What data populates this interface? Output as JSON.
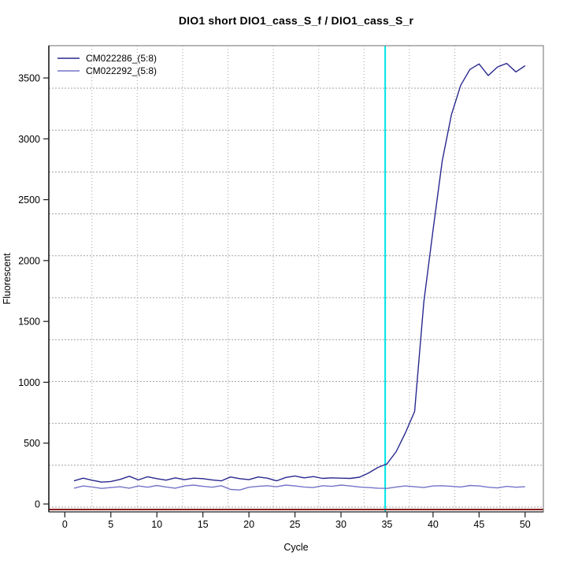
{
  "page": {
    "background": "#ffffff"
  },
  "chart_data": {
    "type": "line",
    "title": "DIO1 short DIO1_cass_S_f / DIO1_cass_S_r",
    "xlabel": "Cycle",
    "ylabel": "Fluorescent",
    "x_ticks": [
      0,
      5,
      10,
      15,
      20,
      25,
      30,
      35,
      40,
      45,
      50
    ],
    "y_ticks": [
      0,
      500,
      1000,
      1500,
      2000,
      2500,
      3000,
      3500
    ],
    "xlim": [
      -1.7,
      52.0
    ],
    "ylim": [
      -65,
      3765
    ],
    "grid": true,
    "legend_position": "top-left",
    "threshold_vline": {
      "x": 34.8,
      "color": "#00e6e6"
    },
    "baseline_hline": {
      "y": -45,
      "color": "#8b1f1f"
    },
    "series": [
      {
        "name": "CM022286_(5:8)",
        "color": "#28288f",
        "x": [
          1,
          2,
          3,
          4,
          5,
          6,
          7,
          8,
          9,
          10,
          11,
          12,
          13,
          14,
          15,
          16,
          17,
          18,
          19,
          20,
          21,
          22,
          23,
          24,
          25,
          26,
          27,
          28,
          29,
          30,
          31,
          32,
          33,
          34,
          35,
          36,
          37,
          38,
          39,
          40,
          41,
          42,
          43,
          44,
          45,
          46,
          47,
          48,
          49,
          50
        ],
        "values": [
          190,
          212,
          195,
          180,
          185,
          202,
          228,
          198,
          224,
          208,
          196,
          215,
          200,
          212,
          208,
          198,
          190,
          222,
          208,
          200,
          222,
          212,
          190,
          218,
          230,
          215,
          225,
          210,
          215,
          212,
          210,
          220,
          255,
          300,
          330,
          430,
          585,
          760,
          1660,
          2250,
          2820,
          3200,
          3440,
          3570,
          3615,
          3520,
          3590,
          3620,
          3550,
          3600
        ]
      },
      {
        "name": "CM022292_(5:8)",
        "color": "#7474c9",
        "x": [
          1,
          2,
          3,
          4,
          5,
          6,
          7,
          8,
          9,
          10,
          11,
          12,
          13,
          14,
          15,
          16,
          17,
          18,
          19,
          20,
          21,
          22,
          23,
          24,
          25,
          26,
          27,
          28,
          29,
          30,
          31,
          32,
          33,
          34,
          35,
          36,
          37,
          38,
          39,
          40,
          41,
          42,
          43,
          44,
          45,
          46,
          47,
          48,
          49,
          50
        ],
        "values": [
          130,
          148,
          140,
          128,
          135,
          142,
          130,
          148,
          138,
          152,
          140,
          130,
          148,
          155,
          145,
          138,
          150,
          120,
          115,
          138,
          145,
          150,
          142,
          155,
          148,
          140,
          135,
          150,
          145,
          155,
          148,
          140,
          135,
          130,
          128,
          140,
          148,
          142,
          135,
          148,
          150,
          145,
          140,
          152,
          148,
          138,
          132,
          145,
          138,
          142
        ]
      }
    ],
    "style": {
      "frame_color": "#6e6e6e",
      "axis_color": "#1a1a1a",
      "grid_color": "#a0a0a0",
      "tick_label_size": 12.5,
      "legend_label_size": 12
    }
  }
}
